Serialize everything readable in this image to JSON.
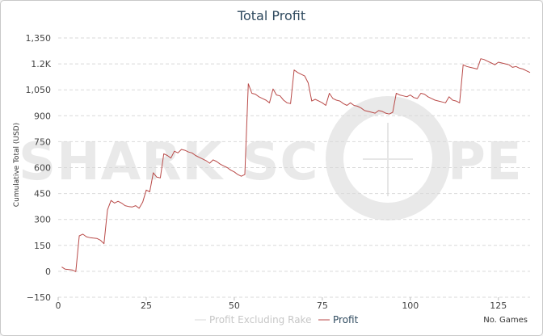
{
  "chart_data": {
    "type": "line",
    "title": "Total Profit",
    "xlabel": "No. Games",
    "ylabel": "Cumulative Total (USD)",
    "xlim": [
      0,
      134
    ],
    "ylim": [
      -150,
      1350
    ],
    "x_ticks": [
      0,
      25,
      50,
      75,
      100,
      125
    ],
    "y_ticks": [
      -150,
      0,
      150,
      300,
      450,
      600,
      750,
      900,
      1050,
      1200,
      1350
    ],
    "y_tick_labels": [
      "−150",
      "0",
      "150",
      "300",
      "450",
      "600",
      "750",
      "900",
      "1,050",
      "1.2K",
      "1,350"
    ],
    "grid": "horizontal dashed",
    "legend_position": "bottom-center",
    "watermark_left": "SHARK SC",
    "watermark_right": "PE",
    "series": [
      {
        "name": "Profit Excluding Rake",
        "color": "#d8d8d8",
        "visible": false,
        "values": []
      },
      {
        "name": "Profit",
        "color": "#b94a48",
        "visible": true,
        "x": [
          1,
          2,
          3,
          4,
          5,
          6,
          7,
          8,
          9,
          10,
          11,
          12,
          13,
          14,
          15,
          16,
          17,
          18,
          19,
          20,
          21,
          22,
          23,
          24,
          25,
          26,
          27,
          28,
          29,
          30,
          31,
          32,
          33,
          34,
          35,
          36,
          37,
          38,
          39,
          40,
          41,
          42,
          43,
          44,
          45,
          46,
          47,
          48,
          49,
          50,
          51,
          52,
          53,
          54,
          55,
          56,
          57,
          58,
          59,
          60,
          61,
          62,
          63,
          64,
          65,
          66,
          67,
          68,
          69,
          70,
          71,
          72,
          73,
          74,
          75,
          76,
          77,
          78,
          79,
          80,
          81,
          82,
          83,
          84,
          85,
          86,
          87,
          88,
          89,
          90,
          91,
          92,
          93,
          94,
          95,
          96,
          97,
          98,
          99,
          100,
          101,
          102,
          103,
          104,
          105,
          106,
          107,
          108,
          109,
          110,
          111,
          112,
          113,
          114,
          115,
          116,
          117,
          118,
          119,
          120,
          121,
          122,
          123,
          124,
          125,
          126,
          127,
          128,
          129,
          130,
          131,
          132,
          133,
          134
        ],
        "y": [
          25,
          12,
          10,
          8,
          -2,
          205,
          215,
          200,
          195,
          192,
          190,
          180,
          160,
          355,
          410,
          395,
          405,
          395,
          380,
          375,
          372,
          380,
          365,
          400,
          470,
          460,
          570,
          545,
          540,
          680,
          670,
          655,
          695,
          685,
          705,
          700,
          690,
          685,
          670,
          660,
          650,
          640,
          625,
          645,
          635,
          620,
          610,
          600,
          585,
          575,
          560,
          550,
          560,
          1085,
          1030,
          1025,
          1010,
          1000,
          990,
          975,
          1055,
          1020,
          1015,
          990,
          975,
          970,
          1165,
          1150,
          1140,
          1130,
          1090,
          985,
          995,
          985,
          975,
          960,
          1030,
          1000,
          990,
          985,
          970,
          960,
          975,
          960,
          955,
          945,
          930,
          925,
          920,
          915,
          930,
          925,
          915,
          910,
          920,
          1030,
          1020,
          1015,
          1010,
          1020,
          1005,
          1000,
          1030,
          1025,
          1010,
          1000,
          990,
          985,
          980,
          975,
          1010,
          990,
          985,
          975,
          1195,
          1185,
          1180,
          1175,
          1170,
          1230,
          1225,
          1215,
          1205,
          1195,
          1210,
          1205,
          1200,
          1195,
          1180,
          1185,
          1175,
          1170,
          1160,
          1150
        ]
      }
    ]
  }
}
